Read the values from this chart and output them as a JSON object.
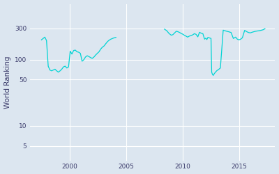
{
  "ylabel": "World Ranking",
  "line_color": "#00d4d4",
  "background_color": "#dce6f0",
  "grid_color": "#ffffff",
  "yticks": [
    5,
    10,
    50,
    100,
    300
  ],
  "ytick_labels": [
    "5",
    "10",
    "50",
    "100",
    "300"
  ],
  "xlim_start": 1996.5,
  "xlim_end": 2018.2,
  "ylim_bottom": 3,
  "ylim_top": 700,
  "xticks": [
    2000,
    2005,
    2010,
    2015
  ],
  "t1": [
    1997.5,
    1997.65,
    1997.8,
    1997.95,
    1998.1,
    1998.25,
    1998.4,
    1998.55,
    1998.7,
    1998.85,
    1999.0,
    1999.15,
    1999.3,
    1999.45,
    1999.6,
    1999.75,
    1999.9,
    2000.05,
    2000.2,
    2000.35,
    2000.5,
    2000.65,
    2000.8,
    2000.95,
    2001.1,
    2001.25,
    2001.4,
    2001.55,
    2001.7,
    2001.85,
    2002.0,
    2002.15,
    2002.3,
    2002.45,
    2002.6,
    2002.75,
    2002.9,
    2003.05,
    2003.2,
    2003.35,
    2003.5,
    2003.65,
    2003.8,
    2003.95,
    2004.1
  ],
  "r1": [
    200,
    210,
    220,
    195,
    80,
    70,
    68,
    70,
    72,
    68,
    65,
    68,
    72,
    78,
    80,
    75,
    78,
    135,
    122,
    138,
    140,
    132,
    130,
    125,
    95,
    100,
    110,
    115,
    112,
    108,
    105,
    110,
    118,
    125,
    132,
    145,
    155,
    162,
    175,
    188,
    198,
    205,
    210,
    215,
    218
  ],
  "t2": [
    2008.4,
    2008.6,
    2008.8,
    2009.0,
    2009.15,
    2009.3,
    2009.45,
    2009.6,
    2009.75,
    2009.9,
    2010.0,
    2010.15,
    2010.3,
    2010.45,
    2010.6,
    2010.75,
    2010.9,
    2011.05,
    2011.2,
    2011.35,
    2011.5,
    2011.65,
    2011.8,
    2011.95,
    2012.05,
    2012.15,
    2012.25,
    2012.35,
    2012.45,
    2012.52,
    2012.58,
    2012.65,
    2012.72,
    2012.82,
    2012.92,
    2013.02,
    2013.12,
    2013.22,
    2013.35,
    2013.6,
    2013.9,
    2014.1,
    2014.3,
    2014.5,
    2014.7,
    2014.85,
    2015.0,
    2015.15,
    2015.3,
    2015.5,
    2015.7,
    2015.85,
    2016.0,
    2016.2,
    2016.4,
    2016.6,
    2016.8,
    2017.0,
    2017.15,
    2017.3
  ],
  "r2": [
    290,
    275,
    250,
    235,
    240,
    255,
    270,
    265,
    258,
    248,
    245,
    235,
    228,
    220,
    228,
    232,
    238,
    248,
    242,
    222,
    260,
    252,
    248,
    205,
    212,
    202,
    218,
    215,
    212,
    210,
    65,
    60,
    58,
    62,
    65,
    68,
    70,
    72,
    75,
    280,
    270,
    265,
    258,
    210,
    220,
    205,
    200,
    205,
    215,
    278,
    265,
    258,
    255,
    262,
    268,
    272,
    275,
    280,
    285,
    295
  ]
}
